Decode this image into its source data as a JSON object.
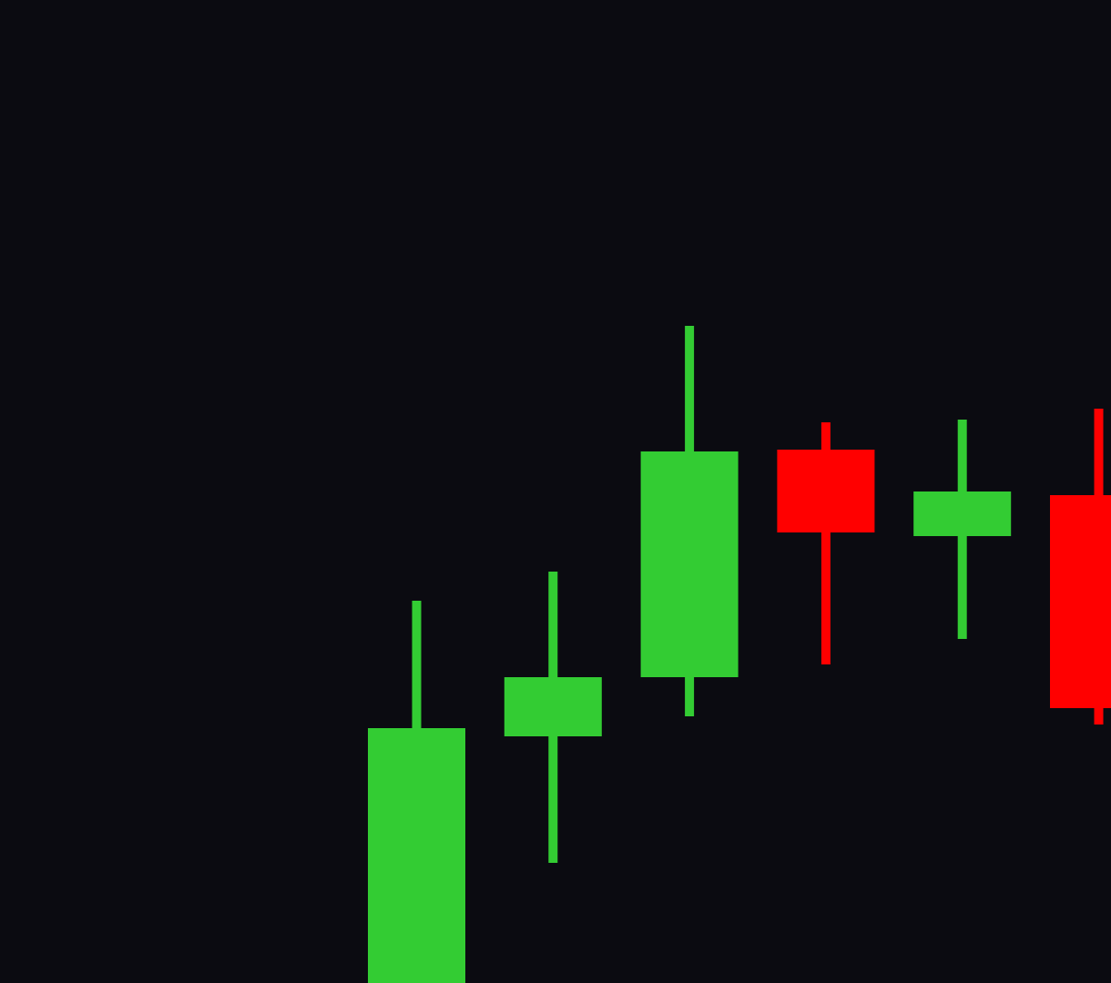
{
  "colors": {
    "background": "#0b0b11",
    "up": "#33cc33",
    "down": "#ff0000"
  },
  "chart_data": {
    "type": "candlestick",
    "title": "",
    "xlabel": "",
    "ylabel": "",
    "grid": false,
    "legend": "none",
    "ylim": [
      0,
      1080
    ],
    "candles": [
      {
        "open": 0,
        "close": 280,
        "high": 420,
        "low": 0
      },
      {
        "open": 271,
        "close": 336,
        "high": 452,
        "low": 132
      },
      {
        "open": 336,
        "close": 584,
        "high": 722,
        "low": 293
      },
      {
        "open": 586,
        "close": 495,
        "high": 616,
        "low": 350
      },
      {
        "open": 491,
        "close": 540,
        "high": 619,
        "low": 378
      },
      {
        "open": 536,
        "close": 302,
        "high": 631,
        "low": 284
      }
    ]
  }
}
